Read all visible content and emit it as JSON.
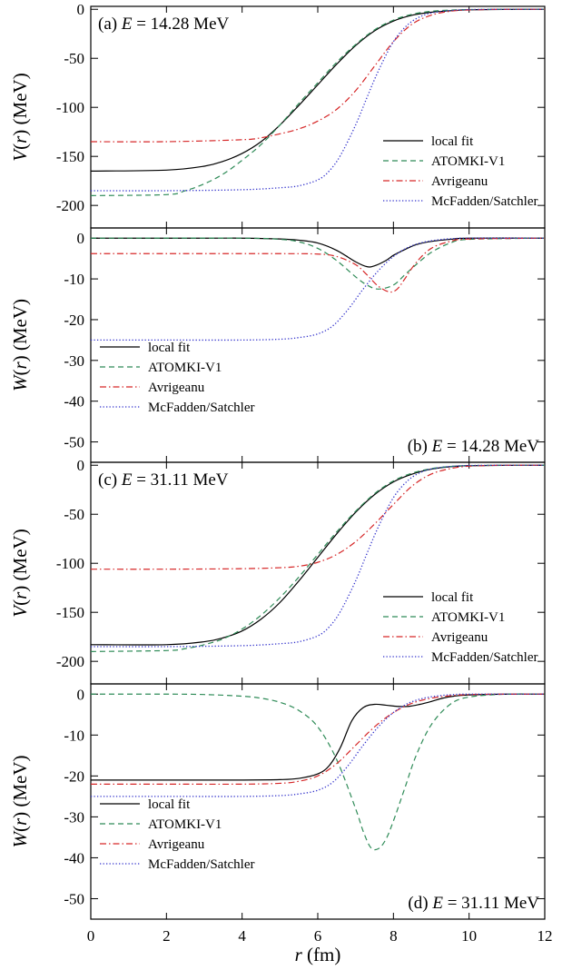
{
  "chart_data": [
    {
      "panel": "(a)",
      "type": "line",
      "label_prefix": "(a)",
      "label_var": "E",
      "label_rest": " = 14.28 MeV",
      "ylabel": "V(r) (MeV)",
      "ylabel_main": "V",
      "ylabel_arg": "r",
      "ylabel_unit": " (MeV)",
      "xlim": [
        0,
        12
      ],
      "ylim": [
        -223,
        3
      ],
      "yticks": [
        0,
        -50,
        -100,
        -150,
        -200
      ],
      "yticklabels": [
        "0",
        "-50",
        "-100",
        "-150",
        "-200"
      ],
      "legend_position": "lower-right",
      "series": [
        {
          "name": "local fit",
          "color": "#000000",
          "dash": "solid",
          "x": [
            0,
            2,
            3,
            3.5,
            4,
            4.5,
            5,
            5.5,
            6,
            6.5,
            7,
            7.5,
            8,
            8.5,
            9,
            9.5,
            10,
            11,
            12
          ],
          "y": [
            -165,
            -164,
            -160,
            -155,
            -147,
            -135,
            -118,
            -98,
            -77,
            -56,
            -37,
            -22,
            -12,
            -6,
            -3,
            -1.5,
            -0.5,
            -0.1,
            0
          ]
        },
        {
          "name": "ATOMKI-V1",
          "color": "#2e8b57",
          "dash": "dashed",
          "x": [
            0,
            2,
            2.5,
            3,
            3.5,
            4,
            4.5,
            5,
            5.5,
            6,
            6.5,
            7,
            7.5,
            8,
            8.5,
            9,
            9.5,
            10,
            11,
            12
          ],
          "y": [
            -190,
            -189,
            -185,
            -178,
            -168,
            -154,
            -138,
            -118,
            -96,
            -75,
            -54,
            -36,
            -21,
            -11,
            -5,
            -2,
            -0.8,
            -0.3,
            0,
            0
          ]
        },
        {
          "name": "Avrigeanu",
          "color": "#d62728",
          "dash": "dashdot",
          "x": [
            0,
            2,
            4,
            4.5,
            5,
            5.5,
            6,
            6.5,
            7,
            7.5,
            8,
            8.5,
            9,
            9.5,
            10,
            11,
            12
          ],
          "y": [
            -135,
            -135,
            -133,
            -131,
            -127,
            -122,
            -114,
            -102,
            -83,
            -58,
            -33,
            -15,
            -6,
            -2,
            -0.7,
            0,
            0
          ]
        },
        {
          "name": "McFadden/Satchler",
          "color": "#3333cc",
          "dash": "dotted",
          "x": [
            0,
            2,
            4,
            5,
            5.5,
            6,
            6.3,
            6.6,
            7,
            7.3,
            7.6,
            8,
            8.4,
            8.8,
            9.2,
            9.6,
            10,
            11,
            12
          ],
          "y": [
            -185,
            -185,
            -184,
            -182,
            -180,
            -174,
            -165,
            -149,
            -118,
            -90,
            -63,
            -33,
            -15,
            -6,
            -2.5,
            -1,
            -0.3,
            0,
            0
          ]
        }
      ]
    },
    {
      "panel": "(b)",
      "type": "line",
      "label_prefix": "(b)",
      "label_var": "E",
      "label_rest": " = 14.28 MeV",
      "ylabel": "W(r) (MeV)",
      "ylabel_main": "W",
      "ylabel_arg": "r",
      "ylabel_unit": " (MeV)",
      "xlim": [
        0,
        12
      ],
      "ylim": [
        -55,
        2.5
      ],
      "yticks": [
        0,
        -10,
        -20,
        -30,
        -40,
        -50
      ],
      "yticklabels": [
        "0",
        "-10",
        "-20",
        "-30",
        "-40",
        "-50"
      ],
      "legend_position": "lower-left",
      "series": [
        {
          "name": "local fit",
          "color": "#000000",
          "dash": "solid",
          "x": [
            0,
            3,
            4,
            5,
            5.5,
            6,
            6.5,
            7,
            7.3,
            7.5,
            7.8,
            8,
            8.3,
            8.6,
            9,
            9.5,
            10,
            12
          ],
          "y": [
            0,
            0,
            0,
            -0.2,
            -0.5,
            -1.2,
            -3,
            -5.8,
            -7,
            -6.8,
            -5.5,
            -4.2,
            -2.8,
            -1.6,
            -0.8,
            -0.3,
            0,
            0
          ]
        },
        {
          "name": "ATOMKI-V1",
          "color": "#2e8b57",
          "dash": "dashed",
          "x": [
            0,
            4,
            5,
            5.5,
            6,
            6.5,
            7,
            7.3,
            7.6,
            8,
            8.3,
            8.6,
            9,
            9.5,
            10,
            12
          ],
          "y": [
            0,
            0,
            -0.3,
            -0.9,
            -2.5,
            -5.5,
            -9.5,
            -11.5,
            -12.5,
            -11.5,
            -9,
            -6.5,
            -3.5,
            -1.2,
            -0.3,
            0
          ]
        },
        {
          "name": "Avrigeanu",
          "color": "#d62728",
          "dash": "dashdot",
          "x": [
            0,
            4,
            5,
            6,
            6.5,
            7,
            7.3,
            7.6,
            7.9,
            8.1,
            8.3,
            8.6,
            9,
            9.5,
            10,
            12
          ],
          "y": [
            -3.8,
            -3.8,
            -3.8,
            -3.9,
            -4.5,
            -6.5,
            -9,
            -11.8,
            -13.2,
            -12.5,
            -10,
            -6,
            -2.5,
            -0.8,
            -0.2,
            0
          ]
        },
        {
          "name": "McFadden/Satchler",
          "color": "#3333cc",
          "dash": "dotted",
          "x": [
            0,
            2,
            4,
            5,
            5.5,
            6,
            6.4,
            6.8,
            7.2,
            7.6,
            8,
            8.4,
            8.8,
            9.2,
            9.6,
            10,
            12
          ],
          "y": [
            -25,
            -25,
            -25,
            -24.8,
            -24.4,
            -23.5,
            -21.5,
            -17.5,
            -12.5,
            -8,
            -4.5,
            -2.2,
            -1,
            -0.4,
            -0.1,
            0,
            0
          ]
        }
      ]
    },
    {
      "panel": "(c)",
      "type": "line",
      "label_prefix": "(c)",
      "label_var": "E",
      "label_rest": " = 31.11 MeV",
      "ylabel": "V(r) (MeV)",
      "ylabel_main": "V",
      "ylabel_arg": "r",
      "ylabel_unit": " (MeV)",
      "xlim": [
        0,
        12
      ],
      "ylim": [
        -223,
        3
      ],
      "yticks": [
        0,
        -50,
        -100,
        -150,
        -200
      ],
      "yticklabels": [
        "0",
        "-50",
        "-100",
        "-150",
        "-200"
      ],
      "legend_position": "lower-right",
      "series": [
        {
          "name": "local fit",
          "color": "#000000",
          "dash": "solid",
          "x": [
            0,
            2,
            3,
            3.5,
            4,
            4.5,
            5,
            5.5,
            6,
            6.5,
            7,
            7.5,
            8,
            8.5,
            9,
            9.5,
            10,
            11,
            12
          ],
          "y": [
            -183,
            -183,
            -180,
            -176,
            -169,
            -157,
            -140,
            -118,
            -94,
            -70,
            -48,
            -30,
            -17,
            -9,
            -4,
            -1.5,
            -0.5,
            -0.1,
            0
          ]
        },
        {
          "name": "ATOMKI-V1",
          "color": "#2e8b57",
          "dash": "dashed",
          "x": [
            0,
            2,
            2.5,
            3,
            3.5,
            4,
            4.5,
            5,
            5.5,
            6,
            6.5,
            7,
            7.5,
            8,
            8.5,
            9,
            9.5,
            10,
            11,
            12
          ],
          "y": [
            -190,
            -189,
            -187,
            -183,
            -177,
            -167,
            -153,
            -135,
            -114,
            -91,
            -68,
            -47,
            -29,
            -16,
            -8,
            -3.5,
            -1.3,
            -0.4,
            0,
            0
          ]
        },
        {
          "name": "Avrigeanu",
          "color": "#d62728",
          "dash": "dashdot",
          "x": [
            0,
            2,
            4,
            5,
            5.5,
            6,
            6.5,
            7,
            7.5,
            8,
            8.5,
            9,
            9.5,
            10,
            11,
            12
          ],
          "y": [
            -106,
            -106,
            -105.5,
            -104.5,
            -103,
            -99,
            -91,
            -78,
            -60,
            -40,
            -21,
            -9,
            -3.5,
            -1,
            0,
            0
          ]
        },
        {
          "name": "McFadden/Satchler",
          "color": "#3333cc",
          "dash": "dotted",
          "x": [
            0,
            2,
            4,
            5,
            5.5,
            6,
            6.3,
            6.6,
            7,
            7.3,
            7.6,
            8,
            8.4,
            8.8,
            9.2,
            9.6,
            10,
            11,
            12
          ],
          "y": [
            -185,
            -185,
            -184,
            -182,
            -180,
            -174,
            -165,
            -149,
            -118,
            -90,
            -63,
            -33,
            -15,
            -6,
            -2.5,
            -1,
            -0.3,
            0,
            0
          ]
        }
      ]
    },
    {
      "panel": "(d)",
      "type": "line",
      "label_prefix": "(d)",
      "label_var": "E",
      "label_rest": " = 31.11 MeV",
      "ylabel": "W(r) (MeV)",
      "ylabel_main": "W",
      "ylabel_arg": "r",
      "ylabel_unit": " (MeV)",
      "xlabel": "r (fm)",
      "xlabel_var": "r",
      "xlabel_unit": " (fm)",
      "xlim": [
        0,
        12
      ],
      "ylim": [
        -55,
        2.5
      ],
      "yticks": [
        0,
        -10,
        -20,
        -30,
        -40,
        -50
      ],
      "yticklabels": [
        "0",
        "-10",
        "-20",
        "-30",
        "-40",
        "-50"
      ],
      "xticks": [
        0,
        2,
        4,
        6,
        8,
        10,
        12
      ],
      "xticklabels": [
        "0",
        "2",
        "4",
        "6",
        "8",
        "10",
        "12"
      ],
      "legend_position": "lower-left",
      "series": [
        {
          "name": "local fit",
          "color": "#000000",
          "dash": "solid",
          "x": [
            0,
            3,
            4,
            5,
            5.5,
            6,
            6.3,
            6.6,
            6.9,
            7.2,
            7.5,
            7.8,
            8.1,
            8.4,
            8.7,
            9,
            9.3,
            9.6,
            10,
            11,
            12
          ],
          "y": [
            -21,
            -21,
            -21,
            -20.9,
            -20.6,
            -19.5,
            -17.5,
            -13,
            -6.5,
            -3.3,
            -2.5,
            -2.7,
            -3,
            -3,
            -2.5,
            -1.8,
            -1,
            -0.5,
            -0.2,
            0,
            0
          ]
        },
        {
          "name": "ATOMKI-V1",
          "color": "#2e8b57",
          "dash": "dashed",
          "x": [
            0,
            2,
            3,
            4,
            4.5,
            5,
            5.5,
            6,
            6.5,
            7,
            7.2,
            7.4,
            7.6,
            7.8,
            8,
            8.3,
            8.6,
            9,
            9.5,
            10,
            11,
            12
          ],
          "y": [
            0,
            0,
            -0.1,
            -0.5,
            -1,
            -2,
            -4,
            -8,
            -16,
            -28,
            -33.5,
            -37.5,
            -37.8,
            -35.5,
            -31,
            -23,
            -15,
            -7.5,
            -2.5,
            -0.7,
            0,
            0
          ]
        },
        {
          "name": "Avrigeanu",
          "color": "#d62728",
          "dash": "dashdot",
          "x": [
            0,
            2,
            4,
            5,
            5.5,
            6,
            6.5,
            7,
            7.5,
            8,
            8.5,
            9,
            9.5,
            10,
            11,
            12
          ],
          "y": [
            -22,
            -22,
            -22,
            -21.8,
            -21.3,
            -20,
            -17,
            -12.5,
            -8,
            -4.5,
            -2.2,
            -1,
            -0.4,
            -0.1,
            0,
            0
          ]
        },
        {
          "name": "McFadden/Satchler",
          "color": "#3333cc",
          "dash": "dotted",
          "x": [
            0,
            2,
            4,
            5,
            5.5,
            6,
            6.4,
            6.8,
            7.2,
            7.6,
            8,
            8.4,
            8.8,
            9.2,
            9.6,
            10,
            12
          ],
          "y": [
            -25,
            -25,
            -25,
            -24.8,
            -24.4,
            -23.5,
            -21.5,
            -17.5,
            -12.5,
            -8,
            -4.5,
            -2.2,
            -1,
            -0.4,
            -0.1,
            0,
            0
          ]
        }
      ]
    }
  ]
}
